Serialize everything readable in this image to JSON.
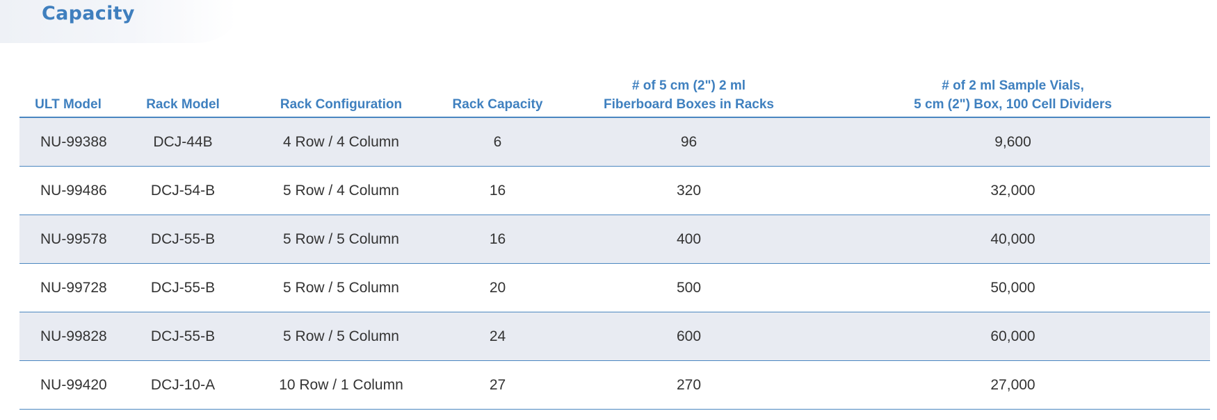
{
  "page": {
    "title": "Capacity"
  },
  "table": {
    "headers": [
      [
        "ULT Model"
      ],
      [
        "Rack Model"
      ],
      [
        "Rack Configuration"
      ],
      [
        "Rack Capacity"
      ],
      [
        "# of 5 cm (2\") 2 ml",
        "Fiberboard Boxes in Racks"
      ],
      [
        "# of 2 ml Sample Vials,",
        "5 cm (2\") Box, 100 Cell Dividers"
      ]
    ],
    "rows": [
      [
        "NU-99388",
        "DCJ-44B",
        "4 Row / 4 Column",
        "6",
        "96",
        "9,600"
      ],
      [
        "NU-99486",
        "DCJ-54-B",
        "5 Row / 4 Column",
        "16",
        "320",
        "32,000"
      ],
      [
        "NU-99578",
        "DCJ-55-B",
        "5 Row / 5 Column",
        "16",
        "400",
        "40,000"
      ],
      [
        "NU-99728",
        "DCJ-55-B",
        "5 Row / 5 Column",
        "20",
        "500",
        "50,000"
      ],
      [
        "NU-99828",
        "DCJ-55-B",
        "5 Row / 5 Column",
        "24",
        "600",
        "60,000"
      ],
      [
        "NU-99420",
        "DCJ-10-A",
        "10 Row / 1 Column",
        "27",
        "270",
        "27,000"
      ]
    ]
  },
  "colors": {
    "accent": "#3f7fbe",
    "rule": "#4a86c0",
    "row_shade": "#e8ebf2",
    "text": "#333333"
  }
}
